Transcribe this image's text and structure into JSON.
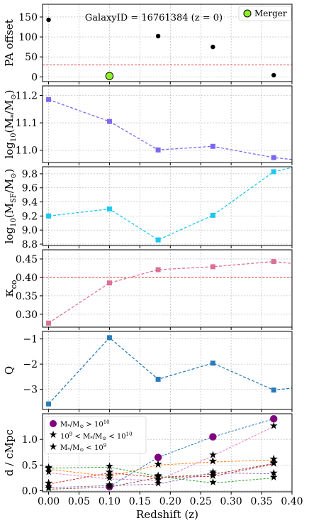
{
  "chart_data": [
    {
      "type": "scatter",
      "title": "GalaxyID = 16761384 (z = 0)",
      "ylabel": "PA offset",
      "ylim": [
        -12,
        182
      ],
      "yticks": [
        0,
        50,
        100,
        150
      ],
      "ytick_labels": [
        "0",
        "50",
        "100",
        "150"
      ],
      "hline": 30,
      "hline_color": "#e11d1d",
      "series": [
        {
          "name": "",
          "color": "#000000",
          "x": [
            0.0,
            0.18,
            0.27,
            0.37
          ],
          "y": [
            143,
            102,
            75,
            4
          ]
        },
        {
          "name": "Merger",
          "color": "#8ef02a",
          "x": [
            0.1
          ],
          "y": [
            2
          ]
        }
      ]
    },
    {
      "type": "line",
      "ylabel": "log10(M*/M⊙)",
      "ylim": [
        10.955,
        11.235
      ],
      "yticks": [
        11.0,
        11.1,
        11.2
      ],
      "ytick_labels": [
        "11.0",
        "11.1",
        "11.2"
      ],
      "series": [
        {
          "name": "",
          "color": "#7b68ee",
          "x": [
            0.0,
            0.1,
            0.18,
            0.27,
            0.37,
            0.4
          ],
          "y": [
            11.185,
            11.105,
            11.001,
            11.014,
            10.973,
            10.966
          ]
        }
      ]
    },
    {
      "type": "line",
      "ylabel": "log10(MSF/M⊙)",
      "ylim": [
        8.78,
        9.9
      ],
      "yticks": [
        8.8,
        9.0,
        9.2,
        9.4,
        9.6,
        9.8
      ],
      "ytick_labels": [
        "8.8",
        "9.0",
        "9.2",
        "9.4",
        "9.6",
        "9.8"
      ],
      "series": [
        {
          "name": "",
          "color": "#1ec8ee",
          "x": [
            0.0,
            0.1,
            0.18,
            0.27,
            0.37,
            0.4
          ],
          "y": [
            9.2,
            9.3,
            8.86,
            9.21,
            9.83,
            9.89
          ]
        }
      ]
    },
    {
      "type": "line",
      "ylabel": "κco",
      "ylim": [
        0.265,
        0.475
      ],
      "yticks": [
        0.3,
        0.35,
        0.4,
        0.45
      ],
      "ytick_labels": [
        "0.30",
        "0.35",
        "0.40",
        "0.45"
      ],
      "hline": 0.4,
      "hline_color": "#e11d1d",
      "series": [
        {
          "name": "",
          "color": "#db7093",
          "x": [
            0.0,
            0.1,
            0.18,
            0.27,
            0.37,
            0.4
          ],
          "y": [
            0.276,
            0.385,
            0.421,
            0.429,
            0.443,
            0.438
          ]
        }
      ]
    },
    {
      "type": "line",
      "ylabel": "Q",
      "ylim": [
        -3.8,
        -0.7
      ],
      "yticks": [
        -3,
        -2,
        -1
      ],
      "ytick_labels": [
        "−3",
        "−2",
        "−1"
      ],
      "series": [
        {
          "name": "",
          "color": "#2b7bb9",
          "x": [
            0.0,
            0.1,
            0.18,
            0.27,
            0.37,
            0.4
          ],
          "y": [
            -3.58,
            -0.95,
            -2.6,
            -1.96,
            -3.03,
            -2.95
          ]
        }
      ]
    },
    {
      "type": "scatter",
      "ylabel": "d / cMpc",
      "xlabel": "Redshift (z)",
      "xlim": [
        -0.01,
        0.4
      ],
      "ylim": [
        -0.02,
        1.5
      ],
      "yticks": [
        0.0,
        0.5,
        1.0
      ],
      "ytick_labels": [
        "0.0",
        "0.5",
        "1.0"
      ],
      "xticks": [
        0.0,
        0.05,
        0.1,
        0.15,
        0.2,
        0.25,
        0.3,
        0.35,
        0.4
      ],
      "xtick_labels": [
        "0.00",
        "0.05",
        "0.10",
        "0.15",
        "0.20",
        "0.25",
        "0.30",
        "0.35",
        "0.40"
      ],
      "legend": [
        "M*/M⊙ > 10^10",
        "10^9 < M*/M⊙ < 10^10",
        "M*/M⊙ < 10^9"
      ],
      "legend_location": "upper-left",
      "tracks": [
        {
          "color": "#1f77b4",
          "marker": "big",
          "x": [
            0.1,
            0.18,
            0.27,
            0.37
          ],
          "y": [
            0.08,
            0.65,
            1.05,
            1.4
          ]
        },
        {
          "color": "#e377c2",
          "marker": "small",
          "x": [
            0.0,
            0.1,
            0.18,
            0.27,
            0.37
          ],
          "y": [
            0.35,
            0.23,
            0.2,
            0.68,
            1.25
          ]
        },
        {
          "color": "#ff7f0e",
          "marker": "mid",
          "x": [
            0.0,
            0.1,
            0.18,
            0.27,
            0.37
          ],
          "y": [
            0.42,
            0.28,
            0.5,
            0.56,
            0.6
          ]
        },
        {
          "color": "#d62728",
          "marker": "mid",
          "x": [
            0.0,
            0.1,
            0.18,
            0.27,
            0.37
          ],
          "y": [
            0.13,
            0.35,
            0.26,
            0.28,
            0.52
          ]
        },
        {
          "color": "#2ca02c",
          "marker": "small",
          "x": [
            0.0,
            0.1,
            0.18,
            0.27,
            0.37
          ],
          "y": [
            0.44,
            0.46,
            0.28,
            0.15,
            0.25
          ]
        },
        {
          "color": "#9467bd",
          "marker": "small",
          "x": [
            0.0,
            0.1,
            0.18,
            0.27,
            0.37
          ],
          "y": [
            0.06,
            0.1,
            0.13,
            0.35,
            0.33
          ]
        },
        {
          "color": "#8c564b",
          "marker": "small",
          "x": [
            0.0,
            0.1,
            0.18,
            0.27,
            0.37
          ],
          "y": [
            0.03,
            0.07,
            0.26,
            0.32,
            0.53
          ]
        }
      ],
      "markers": {
        "big": {
          "color": "#800080"
        },
        "mid": {
          "color": "#ff00ff"
        },
        "small": {
          "color": "#ffc0cb"
        }
      }
    }
  ]
}
